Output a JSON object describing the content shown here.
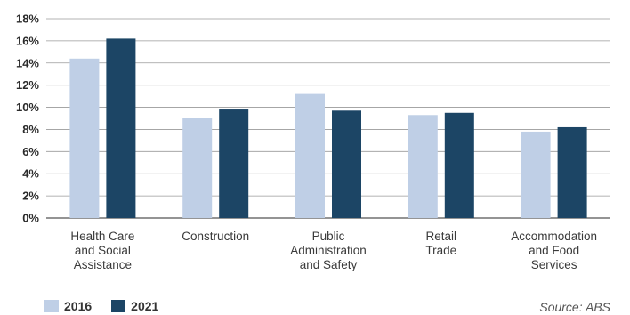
{
  "chart_data": {
    "type": "bar",
    "categories": [
      [
        "Health Care",
        "and Social",
        "Assistance"
      ],
      [
        "Construction"
      ],
      [
        "Public",
        "Administration",
        "and Safety"
      ],
      [
        "Retail",
        "Trade"
      ],
      [
        "Accommodation",
        "and Food",
        "Services"
      ]
    ],
    "series": [
      {
        "name": "2016",
        "values": [
          14.4,
          9.0,
          11.2,
          9.3,
          7.8
        ],
        "color": "#bfcfe6"
      },
      {
        "name": "2021",
        "values": [
          16.2,
          9.8,
          9.7,
          9.5,
          8.2
        ],
        "color": "#1c4565"
      }
    ],
    "yticks": [
      "0%",
      "2%",
      "4%",
      "6%",
      "8%",
      "10%",
      "12%",
      "14%",
      "16%",
      "18%"
    ],
    "ylim": [
      0,
      18
    ],
    "grid": true,
    "legend_position": "bottom-left",
    "source": "Source: ABS"
  }
}
